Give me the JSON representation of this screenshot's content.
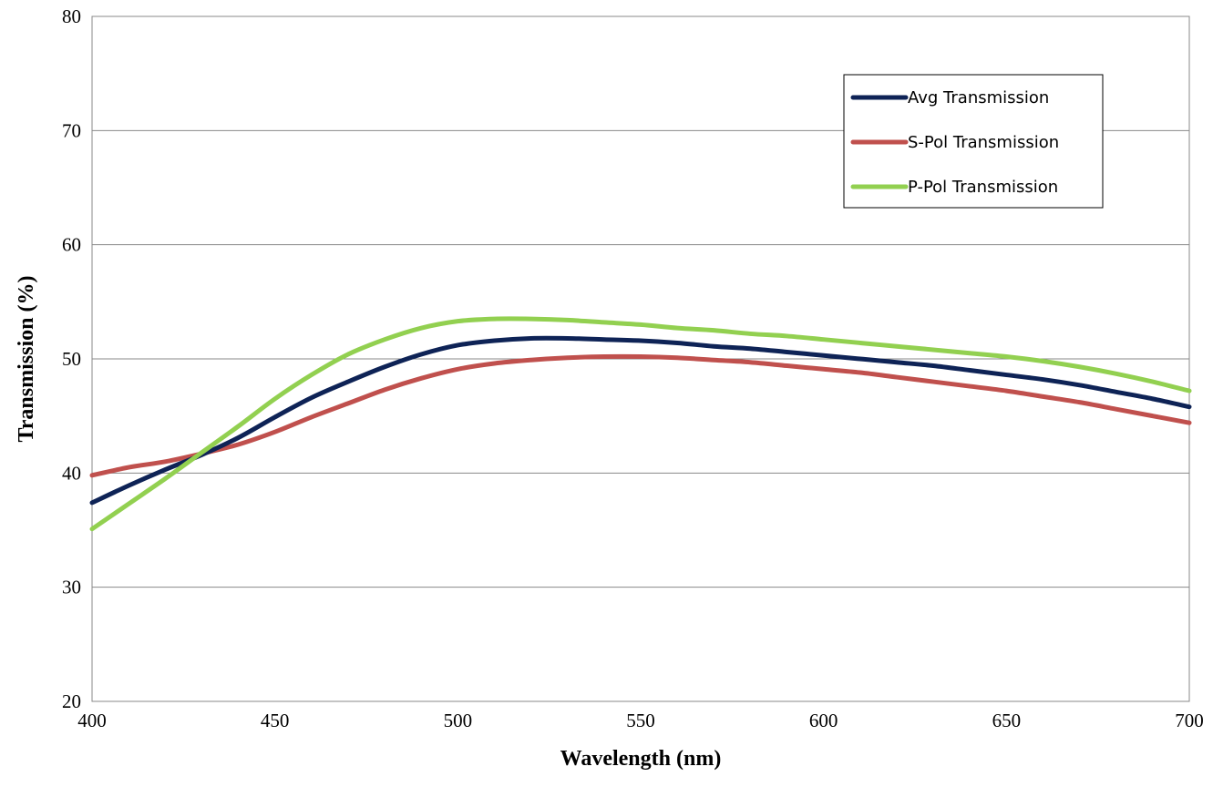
{
  "chart_data": {
    "type": "line",
    "title": "",
    "xlabel": "Wavelength (nm)",
    "ylabel": "Transmission (%)",
    "xlim": [
      400,
      700
    ],
    "ylim": [
      20,
      80
    ],
    "xticks": [
      "400",
      "450",
      "500",
      "550",
      "600",
      "650",
      "700"
    ],
    "yticks": [
      "20",
      "30",
      "40",
      "50",
      "60",
      "70",
      "80"
    ],
    "grid": {
      "horizontal": true,
      "vertical": false
    },
    "legend_position": "top-right",
    "series": [
      {
        "name": "Avg Transmission",
        "color": "#0e2356",
        "x": [
          400,
          410,
          420,
          430,
          440,
          450,
          460,
          470,
          480,
          490,
          500,
          510,
          520,
          530,
          540,
          550,
          560,
          570,
          580,
          590,
          600,
          610,
          620,
          630,
          640,
          650,
          660,
          670,
          680,
          690,
          700
        ],
        "y": [
          37.4,
          38.9,
          40.3,
          41.6,
          43.1,
          44.9,
          46.6,
          48.0,
          49.3,
          50.4,
          51.2,
          51.6,
          51.8,
          51.8,
          51.7,
          51.6,
          51.4,
          51.1,
          50.9,
          50.6,
          50.3,
          50.0,
          49.7,
          49.4,
          49.0,
          48.6,
          48.2,
          47.7,
          47.1,
          46.5,
          45.8
        ]
      },
      {
        "name": "S-Pol Transmission",
        "color": "#c0504d",
        "x": [
          400,
          410,
          420,
          430,
          440,
          450,
          460,
          470,
          480,
          490,
          500,
          510,
          520,
          530,
          540,
          550,
          560,
          570,
          580,
          590,
          600,
          610,
          620,
          630,
          640,
          650,
          660,
          670,
          680,
          690,
          700
        ],
        "y": [
          39.8,
          40.5,
          41.0,
          41.7,
          42.5,
          43.6,
          44.9,
          46.1,
          47.3,
          48.3,
          49.1,
          49.6,
          49.9,
          50.1,
          50.2,
          50.2,
          50.1,
          49.9,
          49.7,
          49.4,
          49.1,
          48.8,
          48.4,
          48.0,
          47.6,
          47.2,
          46.7,
          46.2,
          45.6,
          45.0,
          44.4
        ]
      },
      {
        "name": "P-Pol Transmission",
        "color": "#92d050",
        "x": [
          400,
          410,
          420,
          430,
          440,
          450,
          460,
          470,
          480,
          490,
          500,
          510,
          520,
          530,
          540,
          550,
          560,
          570,
          580,
          590,
          600,
          610,
          620,
          630,
          640,
          650,
          660,
          670,
          680,
          690,
          700
        ],
        "y": [
          35.1,
          37.3,
          39.5,
          41.8,
          44.1,
          46.5,
          48.6,
          50.4,
          51.7,
          52.7,
          53.3,
          53.5,
          53.5,
          53.4,
          53.2,
          53.0,
          52.7,
          52.5,
          52.2,
          52.0,
          51.7,
          51.4,
          51.1,
          50.8,
          50.5,
          50.2,
          49.8,
          49.3,
          48.7,
          48.0,
          47.2
        ]
      }
    ]
  }
}
